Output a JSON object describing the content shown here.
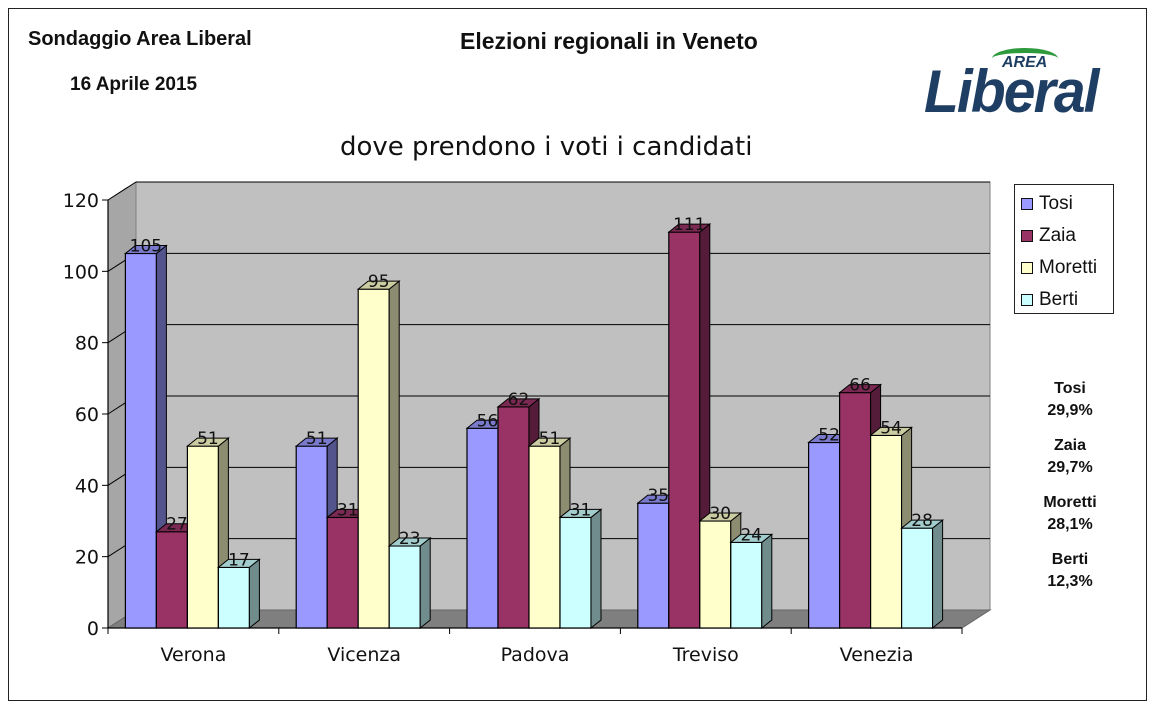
{
  "header": {
    "source": "Sondaggio Area Liberal",
    "date": "16 Aprile 2015",
    "title": "Elezioni regionali in Veneto",
    "logo_top": "AREA",
    "logo_main": "Liberal"
  },
  "chart_data": {
    "type": "bar",
    "title": "dove prendono i voti i candidati",
    "categories": [
      "Verona",
      "Vicenza",
      "Padova",
      "Treviso",
      "Venezia"
    ],
    "series": [
      {
        "name": "Tosi",
        "color": "#9999ff",
        "values": [
          105,
          51,
          56,
          35,
          52
        ]
      },
      {
        "name": "Zaia",
        "color": "#993366",
        "values": [
          27,
          31,
          62,
          111,
          66
        ]
      },
      {
        "name": "Moretti",
        "color": "#ffffcc",
        "values": [
          51,
          95,
          51,
          30,
          54
        ]
      },
      {
        "name": "Berti",
        "color": "#ccffff",
        "values": [
          17,
          23,
          31,
          24,
          28
        ]
      }
    ],
    "ylim": [
      0,
      120
    ],
    "yticks": [
      "0",
      "20",
      "40",
      "60",
      "80",
      "100",
      "120"
    ],
    "grid": true,
    "legend_position": "right",
    "three_d": true
  },
  "totals": [
    {
      "name": "Tosi",
      "value": "29,9%"
    },
    {
      "name": "Zaia",
      "value": "29,7%"
    },
    {
      "name": "Moretti",
      "value": "28,1%"
    },
    {
      "name": "Berti",
      "value": "12,3%"
    }
  ]
}
